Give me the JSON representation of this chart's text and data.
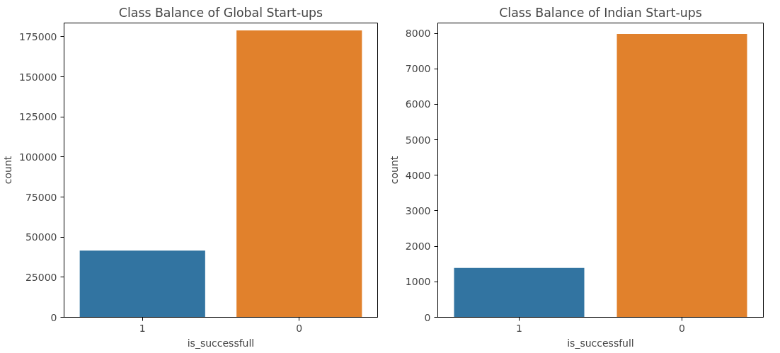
{
  "chart_data": [
    {
      "type": "bar",
      "title": "Class Balance of Global Start-ups",
      "xlabel": "is_successfull",
      "ylabel": "count",
      "categories": [
        "1",
        "0"
      ],
      "values": [
        41600,
        179000
      ],
      "colors": [
        "#3274a1",
        "#e1812c"
      ],
      "ylim": [
        0,
        183600
      ],
      "yticks": [
        0,
        25000,
        50000,
        75000,
        100000,
        125000,
        150000,
        175000
      ],
      "grid": false
    },
    {
      "type": "bar",
      "title": "Class Balance of Indian Start-ups",
      "xlabel": "is_successfull",
      "ylabel": "count",
      "categories": [
        "1",
        "0"
      ],
      "values": [
        1390,
        7980
      ],
      "colors": [
        "#3274a1",
        "#e1812c"
      ],
      "ylim": [
        0,
        8290
      ],
      "yticks": [
        0,
        1000,
        2000,
        3000,
        4000,
        5000,
        6000,
        7000,
        8000
      ],
      "grid": false
    }
  ]
}
